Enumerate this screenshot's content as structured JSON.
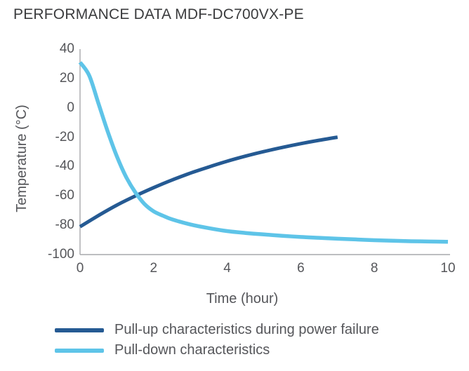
{
  "title": "PERFORMANCE DATA MDF-DC700VX-PE",
  "colors": {
    "pull_up": "#255a93",
    "pull_down": "#5ec4e8",
    "axis_line": "#a7a9ac",
    "text_gray": "#55565a",
    "title_text": "#3a3b3d"
  },
  "chart_data": {
    "type": "line",
    "title": "PERFORMANCE DATA MDF-DC700VX-PE",
    "xlabel": "Time (hour)",
    "ylabel": "Temperature (°C)",
    "xlim": [
      0,
      10
    ],
    "ylim": [
      -100,
      40
    ],
    "x_ticks": [
      0,
      2,
      4,
      6,
      8,
      10
    ],
    "y_ticks": [
      40,
      20,
      0,
      -20,
      -40,
      -60,
      -80,
      -100
    ],
    "grid": false,
    "legend_position": "below-chart-left",
    "series": [
      {
        "name": "Pull-up characteristics during power failure",
        "color": "#255a93",
        "points": [
          [
            0,
            -81
          ],
          [
            0.5,
            -73.4
          ],
          [
            1,
            -66.3
          ],
          [
            1.5,
            -60.1
          ],
          [
            2,
            -54.4
          ],
          [
            2.5,
            -49.2
          ],
          [
            3,
            -44.5
          ],
          [
            3.5,
            -40.3
          ],
          [
            4,
            -36.4
          ],
          [
            4.5,
            -32.9
          ],
          [
            5,
            -29.8
          ],
          [
            5.5,
            -27
          ],
          [
            6,
            -24.4
          ],
          [
            6.5,
            -22.1
          ],
          [
            7,
            -20
          ]
        ]
      },
      {
        "name": "Pull-down characteristics",
        "color": "#5ec4e8",
        "points": [
          [
            0,
            31
          ],
          [
            0.25,
            22
          ],
          [
            0.5,
            3
          ],
          [
            0.75,
            -16
          ],
          [
            1,
            -33
          ],
          [
            1.25,
            -47
          ],
          [
            1.5,
            -57.5
          ],
          [
            1.75,
            -65.5
          ],
          [
            2,
            -70.5
          ],
          [
            2.25,
            -73.5
          ],
          [
            2.5,
            -76
          ],
          [
            3,
            -79.5
          ],
          [
            3.5,
            -82
          ],
          [
            4,
            -84
          ],
          [
            4.5,
            -85.3
          ],
          [
            5,
            -86.3
          ],
          [
            5.5,
            -87.2
          ],
          [
            6,
            -88
          ],
          [
            6.5,
            -88.6
          ],
          [
            7,
            -89.2
          ],
          [
            7.5,
            -89.7
          ],
          [
            8,
            -90.2
          ],
          [
            8.5,
            -90.6
          ],
          [
            9,
            -90.9
          ],
          [
            9.5,
            -91.1
          ],
          [
            10,
            -91.3
          ]
        ]
      }
    ],
    "annotations": {
      "curves_cross_at": [
        1.6,
        -61
      ],
      "pull_up_ends_at": [
        7,
        -20
      ],
      "pull_down_ends_at": [
        10,
        -91
      ]
    }
  }
}
